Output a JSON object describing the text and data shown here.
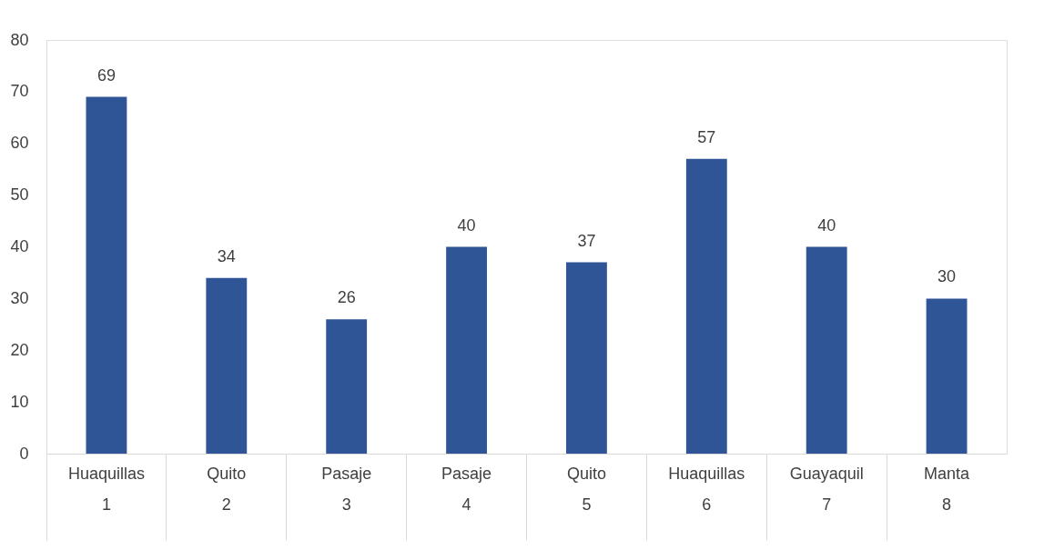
{
  "chart_data": {
    "type": "bar",
    "categories": [
      "Huaquillas\n1",
      "Quito\n2",
      "Pasaje\n3",
      "Pasaje\n4",
      "Quito\n5",
      "Huaquillas\n6",
      "Guayaquil\n7",
      "Manta\n8"
    ],
    "values": [
      69,
      34,
      26,
      40,
      37,
      57,
      40,
      30
    ],
    "color": "#2f5597",
    "ylim": [
      0,
      80
    ],
    "yticks": [
      0,
      10,
      20,
      30,
      40,
      50,
      60,
      70,
      80
    ],
    "grid": false,
    "data_labels": true
  }
}
